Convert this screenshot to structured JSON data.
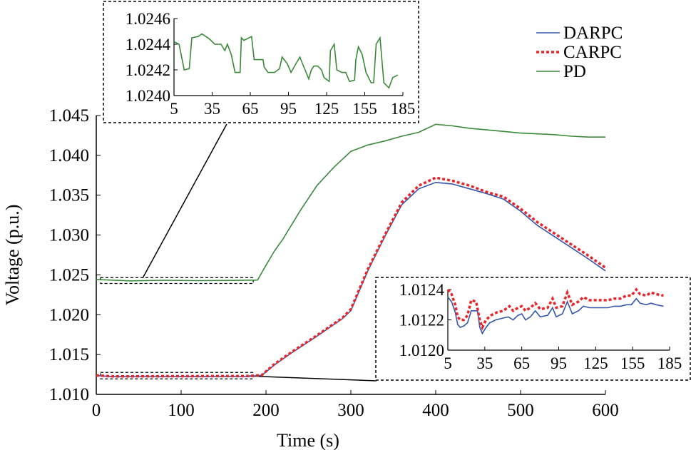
{
  "chart_data": [
    {
      "id": "main",
      "type": "line",
      "xlabel": "Time (s)",
      "ylabel": "Voltage (p.u.)",
      "xlim": [
        0,
        600
      ],
      "ylim": [
        1.01,
        1.045
      ],
      "xticks": [
        0,
        100,
        200,
        300,
        400,
        500,
        600
      ],
      "xtick_labels": [
        "0",
        "100",
        "200",
        "300",
        "400",
        "500",
        "600"
      ],
      "yticks": [
        1.01,
        1.015,
        1.02,
        1.025,
        1.03,
        1.035,
        1.04,
        1.045
      ],
      "ytick_labels": [
        "1.010",
        "1.015",
        "1.020",
        "1.025",
        "1.030",
        "1.035",
        "1.040",
        "1.045"
      ],
      "legend_position": "top-right",
      "series": [
        {
          "name": "DARPC",
          "color": "#3355aa",
          "style": "solid",
          "points": [
            [
              0,
              1.01235
            ],
            [
              20,
              1.01223
            ],
            [
              60,
              1.01224
            ],
            [
              100,
              1.01225
            ],
            [
              140,
              1.01225
            ],
            [
              180,
              1.01226
            ],
            [
              195,
              1.0124
            ],
            [
              210,
              1.0137
            ],
            [
              230,
              1.0152
            ],
            [
              260,
              1.0173
            ],
            [
              290,
              1.0195
            ],
            [
              300,
              1.0205
            ],
            [
              320,
              1.0255
            ],
            [
              340,
              1.0298
            ],
            [
              360,
              1.0338
            ],
            [
              380,
              1.0358
            ],
            [
              400,
              1.0366
            ],
            [
              420,
              1.0364
            ],
            [
              440,
              1.0358
            ],
            [
              460,
              1.0352
            ],
            [
              480,
              1.0345
            ],
            [
              500,
              1.033
            ],
            [
              520,
              1.0312
            ],
            [
              540,
              1.0298
            ],
            [
              560,
              1.0284
            ],
            [
              580,
              1.027
            ],
            [
              600,
              1.0255
            ]
          ]
        },
        {
          "name": "CARPC",
          "color": "#e8262a",
          "style": "dotted",
          "points": [
            [
              0,
              1.01238
            ],
            [
              20,
              1.01226
            ],
            [
              60,
              1.01227
            ],
            [
              100,
              1.01228
            ],
            [
              140,
              1.01229
            ],
            [
              180,
              1.0123
            ],
            [
              195,
              1.01243
            ],
            [
              210,
              1.0138
            ],
            [
              230,
              1.0153
            ],
            [
              260,
              1.0174
            ],
            [
              290,
              1.0196
            ],
            [
              300,
              1.0207
            ],
            [
              320,
              1.0257
            ],
            [
              340,
              1.03
            ],
            [
              360,
              1.0341
            ],
            [
              380,
              1.0362
            ],
            [
              400,
              1.0372
            ],
            [
              420,
              1.0368
            ],
            [
              440,
              1.0362
            ],
            [
              460,
              1.0354
            ],
            [
              480,
              1.0348
            ],
            [
              500,
              1.0333
            ],
            [
              520,
              1.0316
            ],
            [
              540,
              1.0302
            ],
            [
              560,
              1.0288
            ],
            [
              580,
              1.0274
            ],
            [
              600,
              1.0259
            ]
          ]
        },
        {
          "name": "PD",
          "color": "#3a8a3a",
          "style": "solid",
          "points": [
            [
              0,
              1.02442
            ],
            [
              40,
              1.02425
            ],
            [
              80,
              1.02432
            ],
            [
              120,
              1.02428
            ],
            [
              160,
              1.0243
            ],
            [
              190,
              1.02435
            ],
            [
              200,
              1.0262
            ],
            [
              210,
              1.028
            ],
            [
              220,
              1.0295
            ],
            [
              240,
              1.033
            ],
            [
              260,
              1.0362
            ],
            [
              280,
              1.0385
            ],
            [
              300,
              1.0405
            ],
            [
              320,
              1.0413
            ],
            [
              340,
              1.0418
            ],
            [
              360,
              1.0424
            ],
            [
              380,
              1.0429
            ],
            [
              400,
              1.0439
            ],
            [
              420,
              1.0437
            ],
            [
              440,
              1.0434
            ],
            [
              460,
              1.0432
            ],
            [
              480,
              1.043
            ],
            [
              500,
              1.0428
            ],
            [
              520,
              1.0427
            ],
            [
              540,
              1.0426
            ],
            [
              560,
              1.0424
            ],
            [
              580,
              1.0423
            ],
            [
              600,
              1.0423
            ]
          ]
        }
      ]
    },
    {
      "id": "inset_top",
      "type": "line",
      "xlim": [
        5,
        185
      ],
      "ylim": [
        1.024,
        1.0246
      ],
      "xticks": [
        5,
        35,
        65,
        95,
        125,
        155,
        185
      ],
      "xtick_labels": [
        "5",
        "35",
        "65",
        "95",
        "125",
        "155",
        "185"
      ],
      "yticks": [
        1.024,
        1.0242,
        1.0244,
        1.0246
      ],
      "ytick_labels": [
        "1.0240",
        "1.0242",
        "1.0244",
        "1.0246"
      ],
      "series": [
        {
          "name": "PD",
          "color": "#3a8a3a",
          "points": [
            [
              5,
              1.02442
            ],
            [
              9,
              1.0244
            ],
            [
              10,
              1.02435
            ],
            [
              13,
              1.0242
            ],
            [
              17,
              1.02421
            ],
            [
              19,
              1.02445
            ],
            [
              24,
              1.02446
            ],
            [
              27,
              1.02448
            ],
            [
              30,
              1.02446
            ],
            [
              33,
              1.02444
            ],
            [
              37,
              1.0244
            ],
            [
              42,
              1.0244
            ],
            [
              45,
              1.02435
            ],
            [
              47,
              1.0244
            ],
            [
              50,
              1.02432
            ],
            [
              53,
              1.02418
            ],
            [
              57,
              1.02418
            ],
            [
              58,
              1.02445
            ],
            [
              60,
              1.02443
            ],
            [
              66,
              1.02446
            ],
            [
              68,
              1.02428
            ],
            [
              75,
              1.02428
            ],
            [
              76,
              1.02422
            ],
            [
              79,
              1.02418
            ],
            [
              84,
              1.02418
            ],
            [
              88,
              1.02421
            ],
            [
              90,
              1.0243
            ],
            [
              94,
              1.02425
            ],
            [
              97,
              1.02418
            ],
            [
              101,
              1.02425
            ],
            [
              104,
              1.0243
            ],
            [
              106,
              1.02425
            ],
            [
              111,
              1.02413
            ],
            [
              113,
              1.0242
            ],
            [
              115,
              1.02423
            ],
            [
              118,
              1.02423
            ],
            [
              121,
              1.0242
            ],
            [
              123,
              1.02414
            ],
            [
              127,
              1.02411
            ],
            [
              128,
              1.02435
            ],
            [
              131,
              1.0244
            ],
            [
              133,
              1.0242
            ],
            [
              137,
              1.02418
            ],
            [
              140,
              1.02418
            ],
            [
              143,
              1.02411
            ],
            [
              147,
              1.02412
            ],
            [
              148,
              1.02428
            ],
            [
              150,
              1.02438
            ],
            [
              153,
              1.02432
            ],
            [
              156,
              1.02418
            ],
            [
              160,
              1.0241
            ],
            [
              162,
              1.0241
            ],
            [
              164,
              1.0244
            ],
            [
              167,
              1.02445
            ],
            [
              170,
              1.0241
            ],
            [
              174,
              1.02406
            ],
            [
              177,
              1.02414
            ],
            [
              181,
              1.02416
            ]
          ]
        }
      ]
    },
    {
      "id": "inset_bottom",
      "type": "line",
      "xlim": [
        5,
        185
      ],
      "ylim": [
        1.012,
        1.0124
      ],
      "xticks": [
        5,
        35,
        65,
        95,
        125,
        155,
        185
      ],
      "xtick_labels": [
        "5",
        "35",
        "65",
        "95",
        "125",
        "155",
        "185"
      ],
      "yticks": [
        1.012,
        1.0122,
        1.0124
      ],
      "ytick_labels": [
        "1.0120",
        "1.0122",
        "1.0124"
      ],
      "series": [
        {
          "name": "DARPC",
          "color": "#3355aa",
          "points": [
            [
              5,
              1.01235
            ],
            [
              8,
              1.01232
            ],
            [
              11,
              1.01225
            ],
            [
              13,
              1.01217
            ],
            [
              15,
              1.01215
            ],
            [
              18,
              1.01216
            ],
            [
              21,
              1.01218
            ],
            [
              24,
              1.01226
            ],
            [
              29,
              1.01226
            ],
            [
              31,
              1.01215
            ],
            [
              33,
              1.01211
            ],
            [
              36,
              1.01215
            ],
            [
              39,
              1.01218
            ],
            [
              44,
              1.0122
            ],
            [
              49,
              1.01221
            ],
            [
              54,
              1.01222
            ],
            [
              58,
              1.0122
            ],
            [
              62,
              1.01223
            ],
            [
              65,
              1.01224
            ],
            [
              68,
              1.0122
            ],
            [
              72,
              1.01222
            ],
            [
              76,
              1.01226
            ],
            [
              80,
              1.01222
            ],
            [
              86,
              1.01223
            ],
            [
              90,
              1.01228
            ],
            [
              93,
              1.01222
            ],
            [
              98,
              1.01224
            ],
            [
              102,
              1.01232
            ],
            [
              106,
              1.01224
            ],
            [
              111,
              1.01226
            ],
            [
              115,
              1.01229
            ],
            [
              120,
              1.01228
            ],
            [
              125,
              1.01228
            ],
            [
              130,
              1.01228
            ],
            [
              135,
              1.01228
            ],
            [
              140,
              1.01229
            ],
            [
              145,
              1.01229
            ],
            [
              150,
              1.0123
            ],
            [
              154,
              1.0123
            ],
            [
              158,
              1.01234
            ],
            [
              161,
              1.01231
            ],
            [
              166,
              1.0123
            ],
            [
              170,
              1.01231
            ],
            [
              174,
              1.0123
            ],
            [
              180,
              1.01229
            ]
          ]
        },
        {
          "name": "CARPC",
          "color": "#e8262a",
          "points": [
            [
              5,
              1.0124
            ],
            [
              8,
              1.01237
            ],
            [
              11,
              1.0123
            ],
            [
              13,
              1.01222
            ],
            [
              15,
              1.0122
            ],
            [
              18,
              1.0122
            ],
            [
              21,
              1.01223
            ],
            [
              24,
              1.01233
            ],
            [
              28,
              1.01232
            ],
            [
              31,
              1.0122
            ],
            [
              33,
              1.01215
            ],
            [
              36,
              1.0122
            ],
            [
              40,
              1.01223
            ],
            [
              45,
              1.01225
            ],
            [
              50,
              1.01226
            ],
            [
              55,
              1.01229
            ],
            [
              58,
              1.01226
            ],
            [
              62,
              1.01228
            ],
            [
              65,
              1.01229
            ],
            [
              68,
              1.01226
            ],
            [
              72,
              1.01228
            ],
            [
              76,
              1.01231
            ],
            [
              80,
              1.01227
            ],
            [
              86,
              1.01228
            ],
            [
              90,
              1.01234
            ],
            [
              93,
              1.01228
            ],
            [
              98,
              1.01229
            ],
            [
              102,
              1.01238
            ],
            [
              106,
              1.0123
            ],
            [
              111,
              1.01232
            ],
            [
              115,
              1.01235
            ],
            [
              120,
              1.01233
            ],
            [
              125,
              1.01233
            ],
            [
              130,
              1.01233
            ],
            [
              135,
              1.01233
            ],
            [
              140,
              1.01234
            ],
            [
              145,
              1.01234
            ],
            [
              150,
              1.01236
            ],
            [
              154,
              1.01236
            ],
            [
              158,
              1.0124
            ],
            [
              161,
              1.01237
            ],
            [
              166,
              1.01236
            ],
            [
              170,
              1.01238
            ],
            [
              174,
              1.01237
            ],
            [
              180,
              1.01236
            ]
          ]
        }
      ]
    }
  ]
}
